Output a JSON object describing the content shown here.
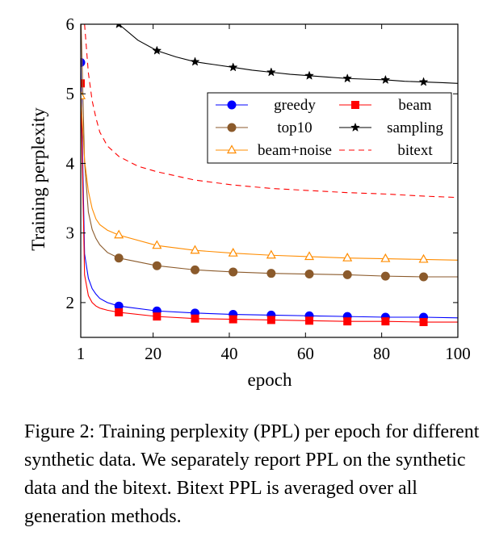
{
  "chart_data": {
    "type": "line",
    "xlabel": "epoch",
    "ylabel": "Training perplexity",
    "xlim": [
      1,
      100
    ],
    "ylim": [
      1.5,
      6
    ],
    "xticks": [
      1,
      20,
      40,
      60,
      80,
      100
    ],
    "yticks": [
      2,
      3,
      4,
      5,
      6
    ],
    "legend_position": "top-right",
    "series": [
      {
        "name": "greedy",
        "color": "#0000ff",
        "marker": "circle",
        "dash": "",
        "x": [
          1,
          2,
          3,
          4,
          5,
          6,
          8,
          11,
          21,
          31,
          41,
          51,
          61,
          71,
          81,
          91,
          100
        ],
        "y": [
          5.45,
          2.7,
          2.35,
          2.2,
          2.12,
          2.06,
          2.0,
          1.95,
          1.88,
          1.85,
          1.83,
          1.82,
          1.81,
          1.8,
          1.79,
          1.79,
          1.78
        ]
      },
      {
        "name": "beam",
        "color": "#ff0000",
        "marker": "square",
        "dash": "",
        "x": [
          1,
          2,
          3,
          4,
          5,
          6,
          8,
          11,
          21,
          31,
          41,
          51,
          61,
          71,
          81,
          91,
          100
        ],
        "y": [
          5.15,
          2.4,
          2.1,
          2.0,
          1.95,
          1.92,
          1.89,
          1.86,
          1.8,
          1.77,
          1.76,
          1.75,
          1.74,
          1.73,
          1.73,
          1.72,
          1.72
        ]
      },
      {
        "name": "top10",
        "color": "#8b5a2b",
        "marker": "circle",
        "dash": "",
        "x": [
          1,
          2,
          3,
          4,
          5,
          6,
          8,
          11,
          21,
          31,
          41,
          51,
          61,
          71,
          81,
          91,
          100
        ],
        "y": [
          6.2,
          4.02,
          3.3,
          3.05,
          2.92,
          2.83,
          2.72,
          2.64,
          2.53,
          2.47,
          2.44,
          2.42,
          2.41,
          2.4,
          2.38,
          2.37,
          2.37
        ]
      },
      {
        "name": "sampling",
        "color": "#000000",
        "marker": "star",
        "dash": "",
        "x": [
          11,
          16,
          21,
          26,
          31,
          36,
          41,
          46,
          51,
          56,
          61,
          66,
          71,
          76,
          81,
          86,
          91,
          96,
          100
        ],
        "y": [
          6.0,
          5.77,
          5.62,
          5.53,
          5.46,
          5.42,
          5.38,
          5.34,
          5.31,
          5.28,
          5.26,
          5.24,
          5.22,
          5.21,
          5.2,
          5.18,
          5.17,
          5.16,
          5.15
        ]
      },
      {
        "name": "beam+noise",
        "color": "#ff8c00",
        "marker": "triangle",
        "dash": "",
        "x": [
          1,
          2,
          3,
          4,
          5,
          6,
          8,
          11,
          21,
          31,
          41,
          51,
          61,
          71,
          81,
          91,
          100
        ],
        "y": [
          4.97,
          4.05,
          3.6,
          3.35,
          3.2,
          3.12,
          3.04,
          2.97,
          2.82,
          2.75,
          2.71,
          2.68,
          2.66,
          2.64,
          2.63,
          2.62,
          2.61
        ]
      },
      {
        "name": "bitext",
        "color": "#ff0000",
        "marker": "none",
        "dash": "7,5",
        "x": [
          2,
          3,
          4,
          5,
          6,
          8,
          11,
          16,
          21,
          31,
          41,
          51,
          61,
          71,
          81,
          91,
          100
        ],
        "y": [
          6.0,
          5.3,
          4.9,
          4.65,
          4.45,
          4.25,
          4.1,
          3.96,
          3.88,
          3.76,
          3.69,
          3.64,
          3.61,
          3.58,
          3.56,
          3.53,
          3.51
        ]
      }
    ],
    "marker_x": [
      1,
      11,
      21,
      31,
      41,
      51,
      61,
      71,
      81,
      91
    ]
  },
  "caption": "Figure 2: Training perplexity (PPL) per epoch for different synthetic data. We separately report PPL on the synthetic data and the bitext. Bitext PPL is averaged over all generation methods."
}
